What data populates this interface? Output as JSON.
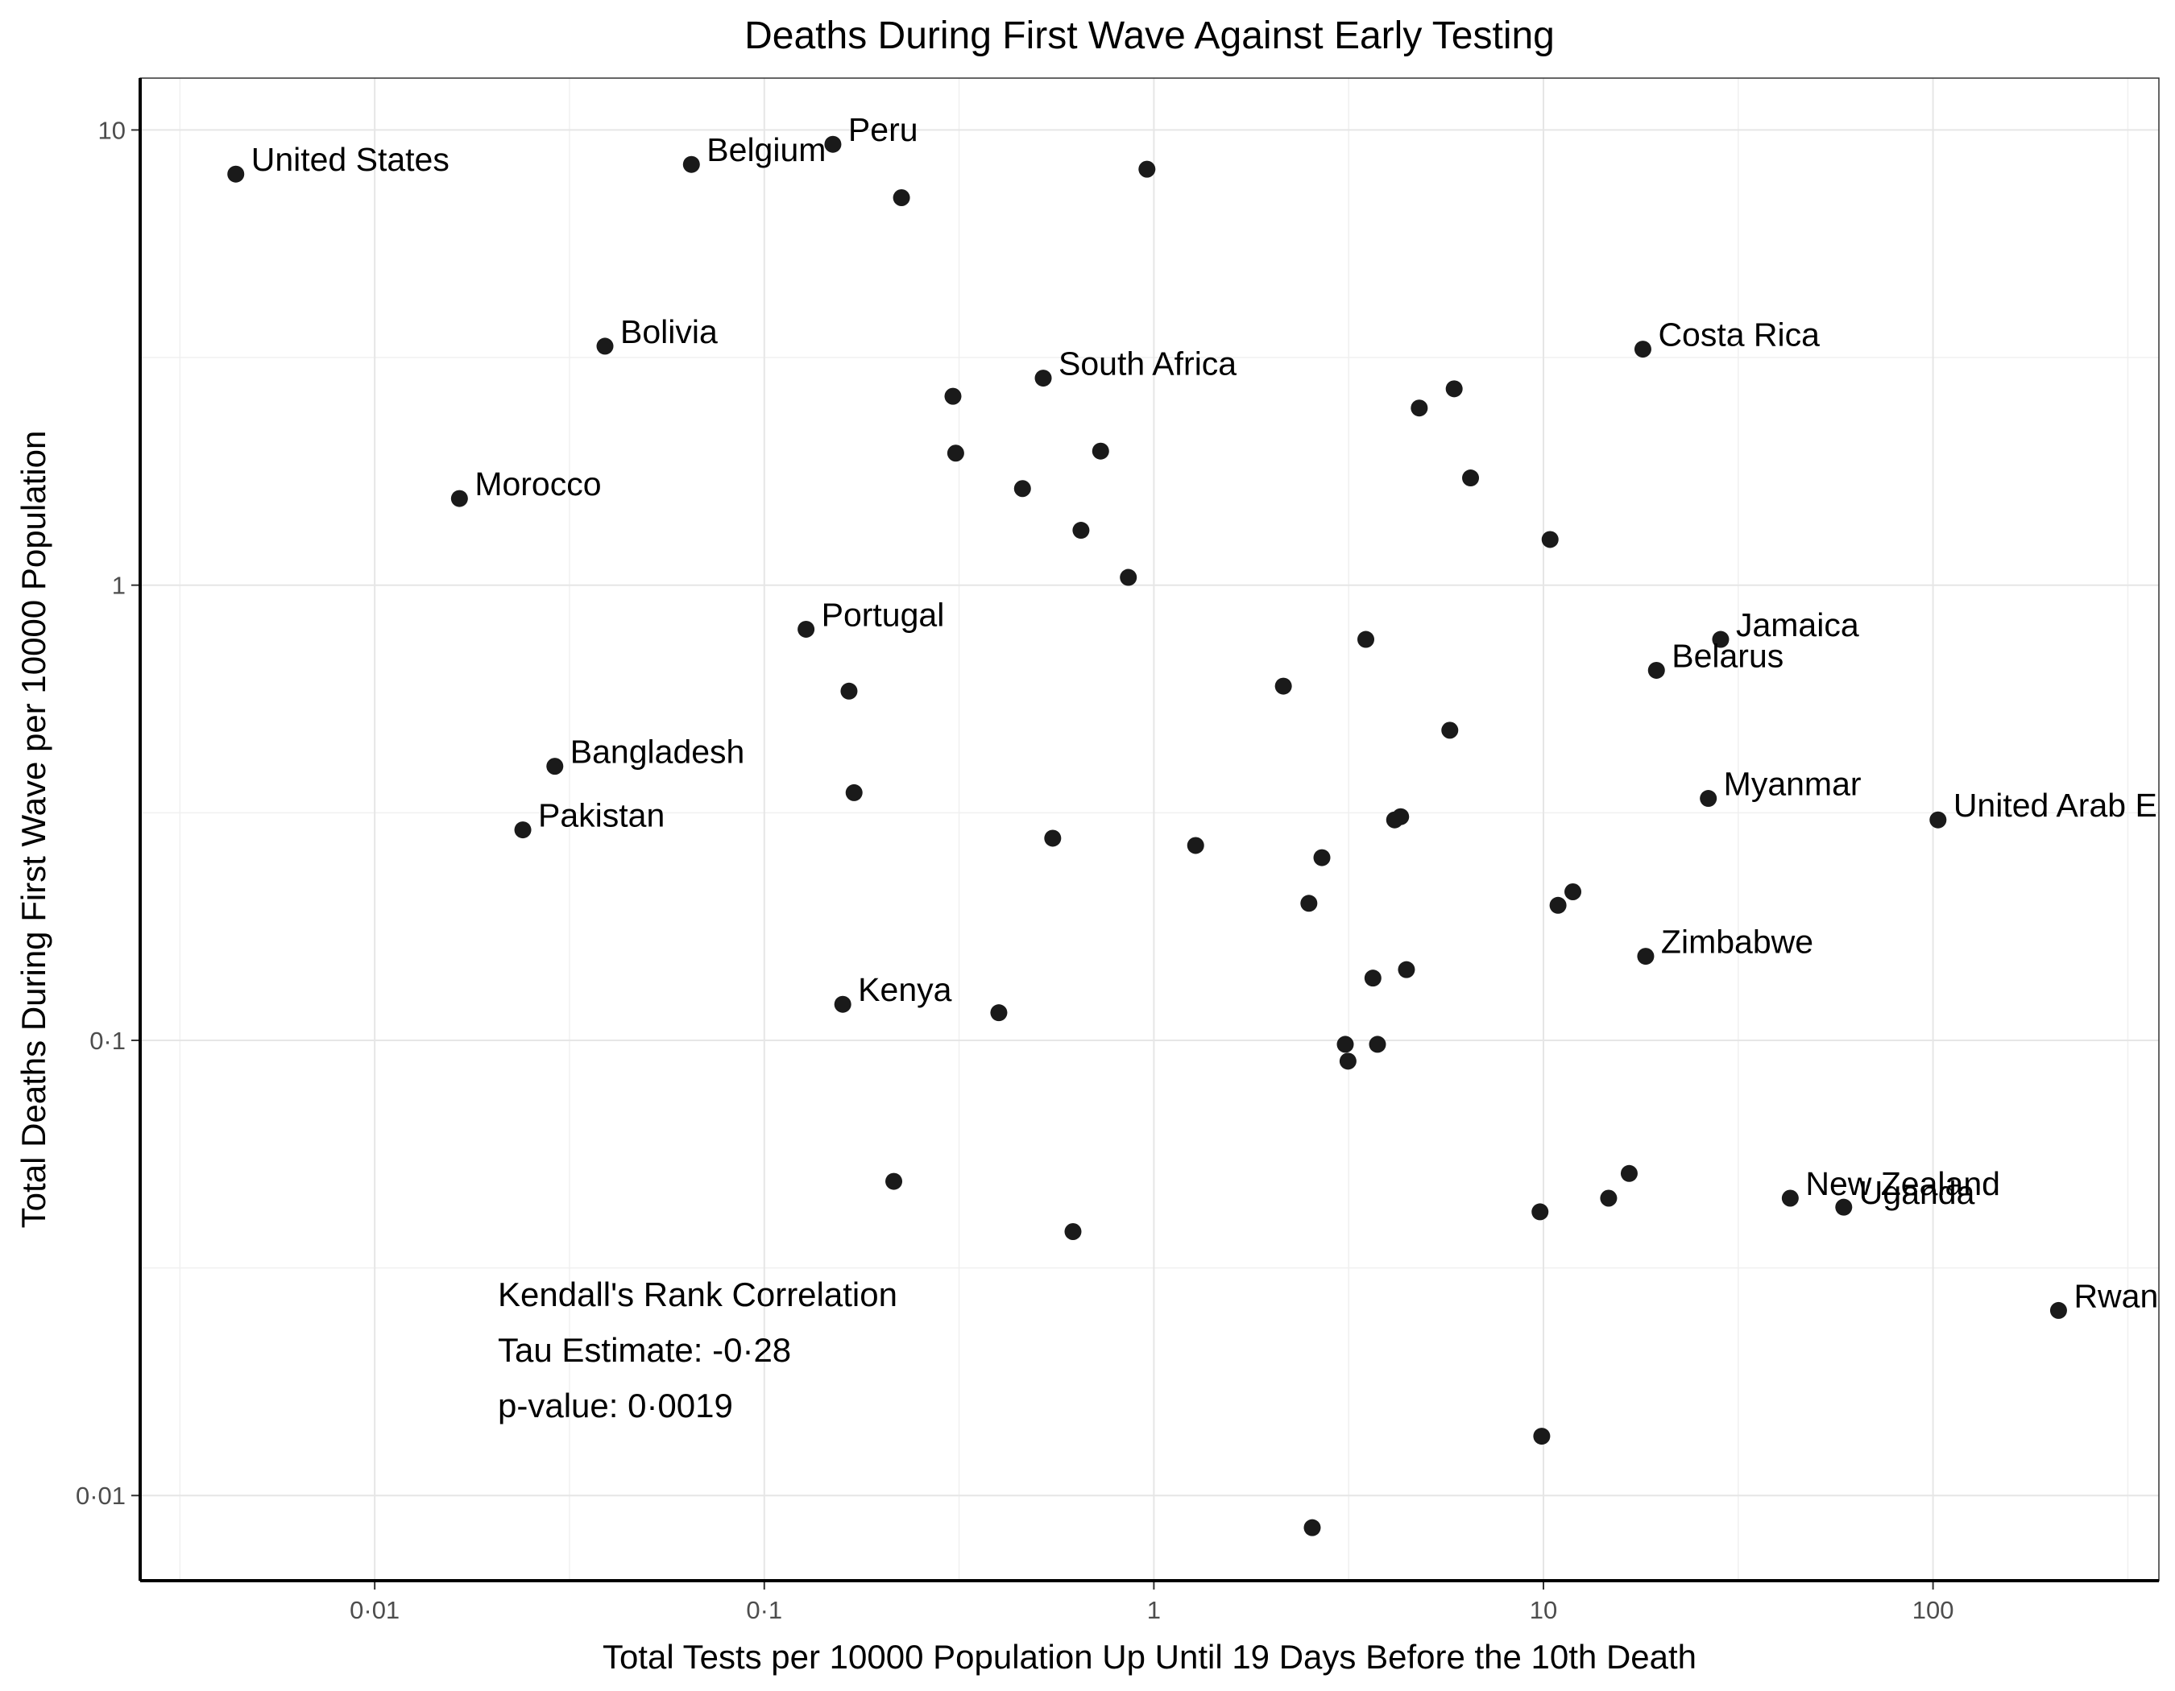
{
  "chart_data": {
    "type": "scatter",
    "title": "Deaths During First Wave Against Early Testing",
    "xlabel": "Total Tests per 10000 Population Up Until 19 Days Before the 10th Death",
    "ylabel": "Total Deaths During First Wave per 10000 Population",
    "x_scale": "log10",
    "y_scale": "log10",
    "xlim": [
      0.0025,
      380
    ],
    "ylim": [
      0.0065,
      13
    ],
    "x_ticks": [
      {
        "value": 0.01,
        "label": "0·01"
      },
      {
        "value": 0.1,
        "label": "0·1"
      },
      {
        "value": 1,
        "label": "1"
      },
      {
        "value": 10,
        "label": "10"
      },
      {
        "value": 100,
        "label": "100"
      }
    ],
    "y_ticks": [
      {
        "value": 0.01,
        "label": "0·01"
      },
      {
        "value": 0.1,
        "label": "0·1"
      },
      {
        "value": 1,
        "label": "1"
      },
      {
        "value": 10,
        "label": "10"
      }
    ],
    "grid": true,
    "points": [
      {
        "x": 0.0044,
        "y": 8.0,
        "label": "United States"
      },
      {
        "x": 0.065,
        "y": 8.4,
        "label": "Belgium"
      },
      {
        "x": 0.15,
        "y": 9.3,
        "label": "Peru"
      },
      {
        "x": 0.225,
        "y": 7.1,
        "label": ""
      },
      {
        "x": 0.96,
        "y": 8.2,
        "label": ""
      },
      {
        "x": 0.039,
        "y": 3.35,
        "label": "Bolivia"
      },
      {
        "x": 0.52,
        "y": 2.85,
        "label": "South Africa"
      },
      {
        "x": 18.0,
        "y": 3.3,
        "label": "Costa Rica"
      },
      {
        "x": 0.305,
        "y": 2.6,
        "label": ""
      },
      {
        "x": 4.8,
        "y": 2.45,
        "label": ""
      },
      {
        "x": 5.9,
        "y": 2.7,
        "label": ""
      },
      {
        "x": 0.31,
        "y": 1.95,
        "label": ""
      },
      {
        "x": 0.73,
        "y": 1.97,
        "label": ""
      },
      {
        "x": 0.46,
        "y": 1.63,
        "label": ""
      },
      {
        "x": 6.5,
        "y": 1.72,
        "label": ""
      },
      {
        "x": 0.0165,
        "y": 1.55,
        "label": "Morocco"
      },
      {
        "x": 0.65,
        "y": 1.32,
        "label": ""
      },
      {
        "x": 10.4,
        "y": 1.26,
        "label": ""
      },
      {
        "x": 0.86,
        "y": 1.04,
        "label": ""
      },
      {
        "x": 0.128,
        "y": 0.8,
        "label": "Portugal"
      },
      {
        "x": 3.5,
        "y": 0.76,
        "label": ""
      },
      {
        "x": 28.5,
        "y": 0.76,
        "label": "Jamaica"
      },
      {
        "x": 19.5,
        "y": 0.65,
        "label": "Belarus"
      },
      {
        "x": 0.165,
        "y": 0.585,
        "label": ""
      },
      {
        "x": 2.15,
        "y": 0.6,
        "label": ""
      },
      {
        "x": 5.75,
        "y": 0.48,
        "label": ""
      },
      {
        "x": 0.029,
        "y": 0.4,
        "label": "Bangladesh"
      },
      {
        "x": 0.17,
        "y": 0.35,
        "label": ""
      },
      {
        "x": 26.5,
        "y": 0.34,
        "label": "Myanmar"
      },
      {
        "x": 0.024,
        "y": 0.29,
        "label": "Pakistan"
      },
      {
        "x": 4.15,
        "y": 0.305,
        "label": ""
      },
      {
        "x": 4.3,
        "y": 0.31,
        "label": ""
      },
      {
        "x": 103.0,
        "y": 0.305,
        "label": "United Arab Emirates"
      },
      {
        "x": 0.55,
        "y": 0.278,
        "label": ""
      },
      {
        "x": 1.28,
        "y": 0.268,
        "label": ""
      },
      {
        "x": 2.7,
        "y": 0.252,
        "label": ""
      },
      {
        "x": 2.5,
        "y": 0.2,
        "label": ""
      },
      {
        "x": 10.9,
        "y": 0.198,
        "label": ""
      },
      {
        "x": 11.9,
        "y": 0.212,
        "label": ""
      },
      {
        "x": 18.3,
        "y": 0.153,
        "label": "Zimbabwe"
      },
      {
        "x": 4.45,
        "y": 0.143,
        "label": ""
      },
      {
        "x": 3.65,
        "y": 0.137,
        "label": ""
      },
      {
        "x": 0.159,
        "y": 0.12,
        "label": "Kenya"
      },
      {
        "x": 0.4,
        "y": 0.115,
        "label": ""
      },
      {
        "x": 3.1,
        "y": 0.098,
        "label": ""
      },
      {
        "x": 3.75,
        "y": 0.098,
        "label": ""
      },
      {
        "x": 3.15,
        "y": 0.09,
        "label": ""
      },
      {
        "x": 0.215,
        "y": 0.049,
        "label": ""
      },
      {
        "x": 16.6,
        "y": 0.051,
        "label": ""
      },
      {
        "x": 14.7,
        "y": 0.045,
        "label": ""
      },
      {
        "x": 9.8,
        "y": 0.042,
        "label": ""
      },
      {
        "x": 43.0,
        "y": 0.045,
        "label": "New Zealand"
      },
      {
        "x": 59.0,
        "y": 0.043,
        "label": "Uganda"
      },
      {
        "x": 0.62,
        "y": 0.038,
        "label": ""
      },
      {
        "x": 210.0,
        "y": 0.0255,
        "label": "Rwanda"
      },
      {
        "x": 9.9,
        "y": 0.0135,
        "label": ""
      },
      {
        "x": 2.55,
        "y": 0.0085,
        "label": ""
      }
    ],
    "annotation": [
      "Kendall's Rank Correlation",
      "Tau Estimate: -0·28",
      "p-value: 0·0019"
    ]
  }
}
